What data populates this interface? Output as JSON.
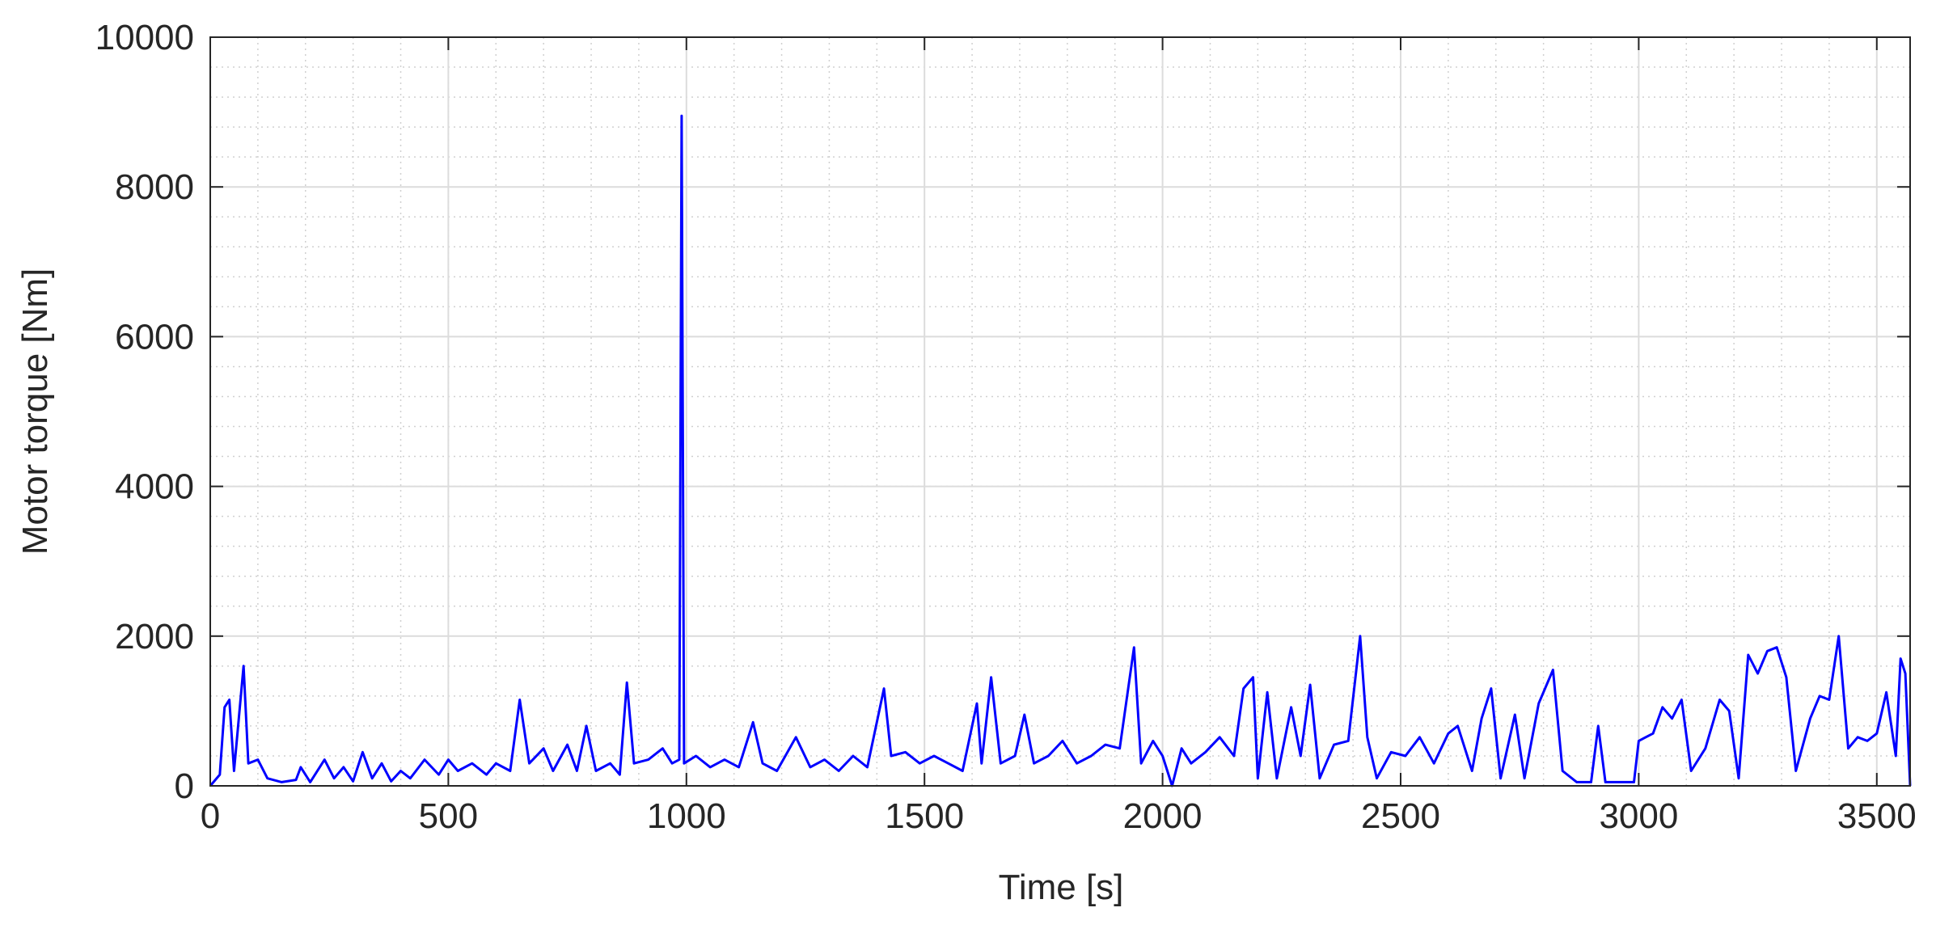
{
  "chart_data": {
    "type": "line",
    "x_label": "Time [s]",
    "y_label": "Motor torque [Nm]",
    "xlim": [
      0,
      3570
    ],
    "ylim": [
      0,
      10000
    ],
    "xticks": [
      0,
      500,
      1000,
      1500,
      2000,
      2500,
      3000,
      3500
    ],
    "yticks": [
      0,
      2000,
      4000,
      6000,
      8000,
      10000
    ],
    "grid": true,
    "minor_grid": true,
    "series": [
      {
        "color": "#0000ff",
        "x": [
          0,
          20,
          30,
          40,
          50,
          70,
          80,
          100,
          120,
          150,
          180,
          190,
          210,
          240,
          260,
          280,
          300,
          320,
          340,
          360,
          380,
          400,
          420,
          450,
          480,
          500,
          520,
          550,
          580,
          600,
          630,
          650,
          670,
          700,
          720,
          750,
          770,
          790,
          810,
          840,
          860,
          875,
          890,
          920,
          950,
          970,
          985,
          990,
          995,
          1020,
          1050,
          1080,
          1110,
          1140,
          1160,
          1190,
          1230,
          1260,
          1290,
          1320,
          1350,
          1380,
          1415,
          1430,
          1460,
          1490,
          1520,
          1550,
          1580,
          1610,
          1620,
          1640,
          1660,
          1690,
          1710,
          1730,
          1760,
          1790,
          1820,
          1850,
          1880,
          1910,
          1940,
          1955,
          1980,
          2000,
          2020,
          2040,
          2060,
          2090,
          2120,
          2150,
          2170,
          2190,
          2200,
          2220,
          2240,
          2270,
          2290,
          2310,
          2330,
          2360,
          2390,
          2415,
          2430,
          2450,
          2480,
          2510,
          2540,
          2570,
          2600,
          2620,
          2650,
          2670,
          2690,
          2710,
          2740,
          2760,
          2790,
          2820,
          2840,
          2870,
          2900,
          2915,
          2930,
          2960,
          2990,
          3000,
          3030,
          3050,
          3070,
          3090,
          3110,
          3140,
          3170,
          3190,
          3210,
          3230,
          3250,
          3270,
          3290,
          3310,
          3330,
          3360,
          3380,
          3400,
          3420,
          3440,
          3460,
          3480,
          3500,
          3520,
          3540,
          3550,
          3560,
          3570
        ],
        "values": [
          0,
          150,
          1050,
          1150,
          200,
          1600,
          300,
          350,
          100,
          50,
          80,
          250,
          50,
          350,
          100,
          250,
          60,
          450,
          100,
          300,
          60,
          200,
          100,
          350,
          150,
          350,
          200,
          300,
          150,
          300,
          200,
          1150,
          300,
          500,
          200,
          550,
          200,
          800,
          200,
          300,
          150,
          1380,
          300,
          350,
          500,
          300,
          350,
          8950,
          300,
          400,
          250,
          350,
          250,
          850,
          300,
          200,
          650,
          250,
          350,
          200,
          400,
          250,
          1300,
          400,
          450,
          300,
          400,
          300,
          200,
          1100,
          300,
          1450,
          300,
          400,
          950,
          300,
          400,
          600,
          300,
          400,
          550,
          500,
          1850,
          300,
          600,
          400,
          0,
          500,
          300,
          450,
          650,
          400,
          1300,
          1450,
          100,
          1250,
          100,
          1050,
          400,
          1350,
          100,
          550,
          600,
          2000,
          650,
          100,
          450,
          400,
          650,
          300,
          700,
          800,
          200,
          900,
          1300,
          100,
          950,
          100,
          1100,
          1550,
          200,
          50,
          50,
          800,
          50,
          50,
          50,
          600,
          700,
          1050,
          900,
          1150,
          200,
          500,
          1150,
          1000,
          100,
          1750,
          1500,
          1800,
          1850,
          1450,
          200,
          900,
          1200,
          1150,
          2000,
          500,
          650,
          600,
          700,
          1250,
          400,
          1700,
          1500,
          0
        ]
      }
    ]
  }
}
